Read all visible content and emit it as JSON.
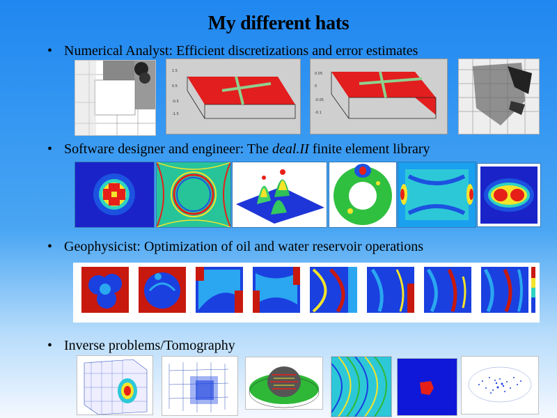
{
  "slide": {
    "title": "My different hats",
    "bullet_symbol": "•",
    "sections": [
      {
        "lead": "Numerical Analyst: Efficient discretizations and error estimates",
        "em": "",
        "tail": ""
      },
      {
        "lead": "Software designer and engineer: The ",
        "em": "deal.II",
        "tail": " finite element library"
      },
      {
        "lead": "Geophysicist: Optimization of oil and water reservoir operations",
        "em": "",
        "tail": ""
      },
      {
        "lead": "Inverse problems/Tomography",
        "em": "",
        "tail": ""
      }
    ]
  }
}
